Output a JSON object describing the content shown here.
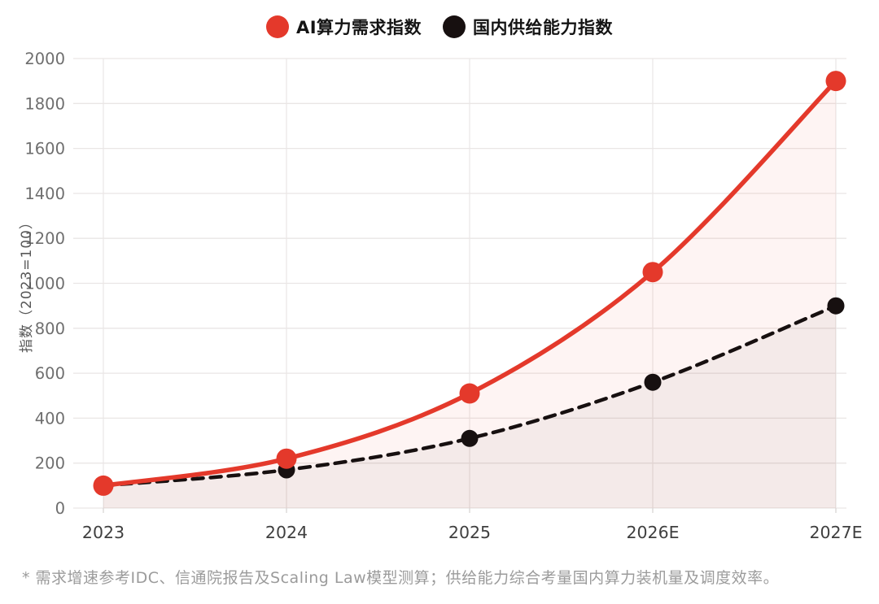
{
  "legend": {
    "items": [
      {
        "label": "AI算力需求指数",
        "color": "#E4392B"
      },
      {
        "label": "国内供给能力指数",
        "color": "#171010"
      }
    ]
  },
  "footnote": "* 需求增速参考IDC、信通院报告及Scaling Law模型测算；供给能力综合考量国内算力装机量及调度效率。",
  "chart_data": {
    "type": "line",
    "categories": [
      "2023",
      "2024",
      "2025",
      "2026E",
      "2027E"
    ],
    "series": [
      {
        "name": "AI算力需求指数",
        "values": [
          100,
          220,
          510,
          1050,
          1900
        ],
        "color": "#E4392B",
        "line_style": "solid",
        "line_width": 5.5,
        "marker_radius": 12.5,
        "fill": "rgba(228,57,43,0.055)"
      },
      {
        "name": "国内供给能力指数",
        "values": [
          100,
          170,
          310,
          560,
          900
        ],
        "color": "#171010",
        "line_style": "dashed",
        "line_width": 4.5,
        "marker_radius": 10.5,
        "fill": "rgba(30,18,16,0.045)"
      }
    ],
    "title": "",
    "xlabel": "",
    "ylabel": "指数（2023=100）",
    "ylim": [
      0,
      2000
    ],
    "ytick_step": 200,
    "grid": true,
    "legend_position": "top-center",
    "colors": {
      "grid_line": "#EAE6E5",
      "y_tick_label": "#6E6E6E",
      "x_tick_label": "#3F3F3F",
      "axis_title": "#585858",
      "footnote": "#9B9B9B",
      "background": "#FFFFFF"
    }
  }
}
